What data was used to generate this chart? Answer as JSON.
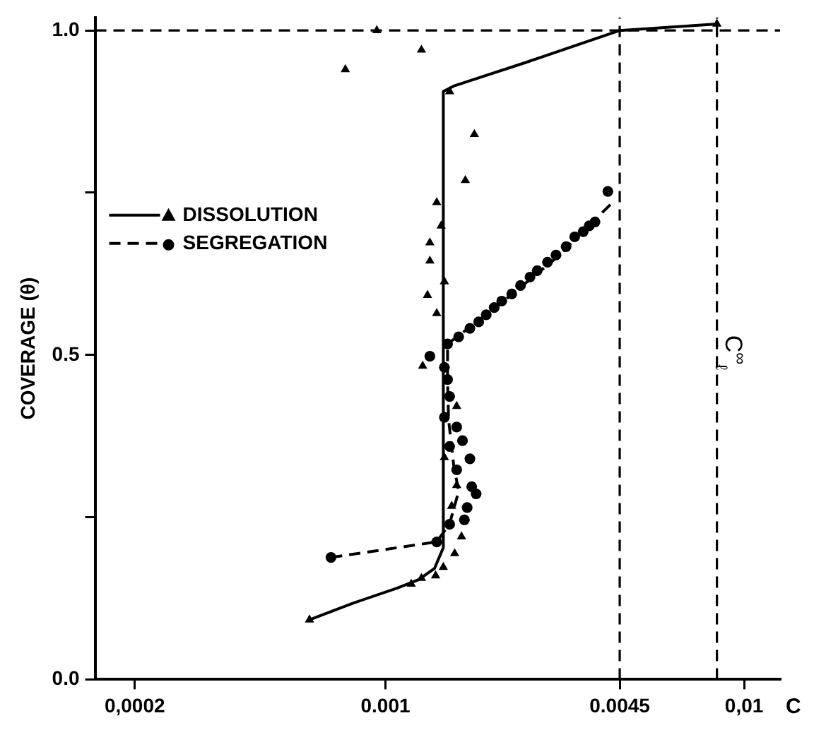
{
  "chart_data": {
    "type": "scatter",
    "xlabel": "C",
    "ylabel": "COVERAGE (θ)",
    "log": "x",
    "xlim": [
      0.000155,
      0.0126
    ],
    "xticks": [
      {
        "value": 0.0002,
        "label": "0,0002"
      },
      0.001,
      0.0045,
      {
        "value": 0.01,
        "label": "0,01"
      }
    ],
    "ylim": [
      0,
      1.02
    ],
    "yticks": [
      {
        "value": 0,
        "label": "0.0"
      },
      {
        "value": 0.25,
        "label": null
      },
      {
        "value": 0.5,
        "label": "0.5"
      },
      {
        "value": 0.75,
        "label": null
      },
      {
        "value": 1,
        "label": "1.0"
      }
    ],
    "grid": false,
    "legend": "top left",
    "ref_lines": [
      {
        "axis": "x",
        "value": 0.0045,
        "line_style": "dashed",
        "color": "#000000"
      },
      {
        "axis": "x",
        "value": 0.0084,
        "label": "C$^{∞}$$_{ℓ}$",
        "line_style": "dashed",
        "color": "#000000"
      },
      {
        "axis": "y",
        "value": 1.0,
        "line_style": "dashed",
        "color": "#000000"
      }
    ],
    "series": [
      {
        "name": "DISSOLUTION",
        "marker": "triangle",
        "line_style": "solid",
        "color": "#000000",
        "x": [
          0.000946,
          0.00126,
          0.000773,
          0.00151,
          0.00177,
          0.00167,
          0.00139,
          0.00143,
          0.00133,
          0.00133,
          0.00146,
          0.00131,
          0.00139,
          0.00127,
          0.00158,
          0.00146,
          0.00158,
          0.00153,
          0.00163,
          0.00156,
          0.00145,
          0.00138,
          0.00126,
          0.00118,
          0.000614,
          0.0084
        ],
        "values": [
          1.0,
          0.97,
          0.94,
          0.906,
          0.84,
          0.769,
          0.735,
          0.699,
          0.673,
          0.645,
          0.613,
          0.592,
          0.564,
          0.483,
          0.421,
          0.342,
          0.299,
          0.267,
          0.22,
          0.194,
          0.173,
          0.16,
          0.156,
          0.147,
          0.092,
          1.01
        ]
      },
      {
        "name": "SEGREGATION",
        "marker": "circle",
        "line_style": "dashed",
        "color": "#000000",
        "x": [
          0.000705,
          0.00139,
          0.00151,
          0.00166,
          0.00169,
          0.00179,
          0.00174,
          0.00158,
          0.00172,
          0.00164,
          0.00158,
          0.00151,
          0.00146,
          0.00151,
          0.00149,
          0.00146,
          0.00133,
          0.00149,
          0.0016,
          0.00172,
          0.00182,
          0.00191,
          0.00201,
          0.00211,
          0.00225,
          0.00238,
          0.00253,
          0.00265,
          0.00283,
          0.00299,
          0.00319,
          0.00337,
          0.00356,
          0.0037,
          0.00384,
          0.00417
        ],
        "values": [
          0.188,
          0.212,
          0.239,
          0.246,
          0.265,
          0.286,
          0.297,
          0.323,
          0.34,
          0.368,
          0.389,
          0.359,
          0.404,
          0.436,
          0.462,
          0.481,
          0.498,
          0.517,
          0.528,
          0.541,
          0.551,
          0.562,
          0.573,
          0.583,
          0.594,
          0.607,
          0.62,
          0.63,
          0.643,
          0.654,
          0.667,
          0.682,
          0.69,
          0.699,
          0.705,
          0.752
        ]
      },
      {
        "type": "line",
        "marker": "none",
        "line_style": "solid",
        "color": "#000000",
        "x": [
          0.000614,
          0.000817,
          0.00108,
          0.00124,
          0.00137,
          0.00145,
          0.00145,
          0.00156,
          0.00247,
          0.0045,
          0.0084
        ],
        "values": [
          0.092,
          0.118,
          0.141,
          0.154,
          0.171,
          0.203,
          0.906,
          0.915,
          0.951,
          1.0,
          1.01
        ]
      },
      {
        "type": "line",
        "marker": "none",
        "line_style": "dashed",
        "color": "#000000",
        "x": [
          0.000705,
          0.00139,
          0.00151,
          0.0016,
          0.00155,
          0.0015,
          0.00149,
          0.00149,
          0.002,
          0.003,
          0.0037,
          0.0043
        ],
        "values": [
          0.188,
          0.212,
          0.24,
          0.29,
          0.33,
          0.4,
          0.46,
          0.517,
          0.57,
          0.65,
          0.7,
          0.735
        ]
      }
    ]
  }
}
